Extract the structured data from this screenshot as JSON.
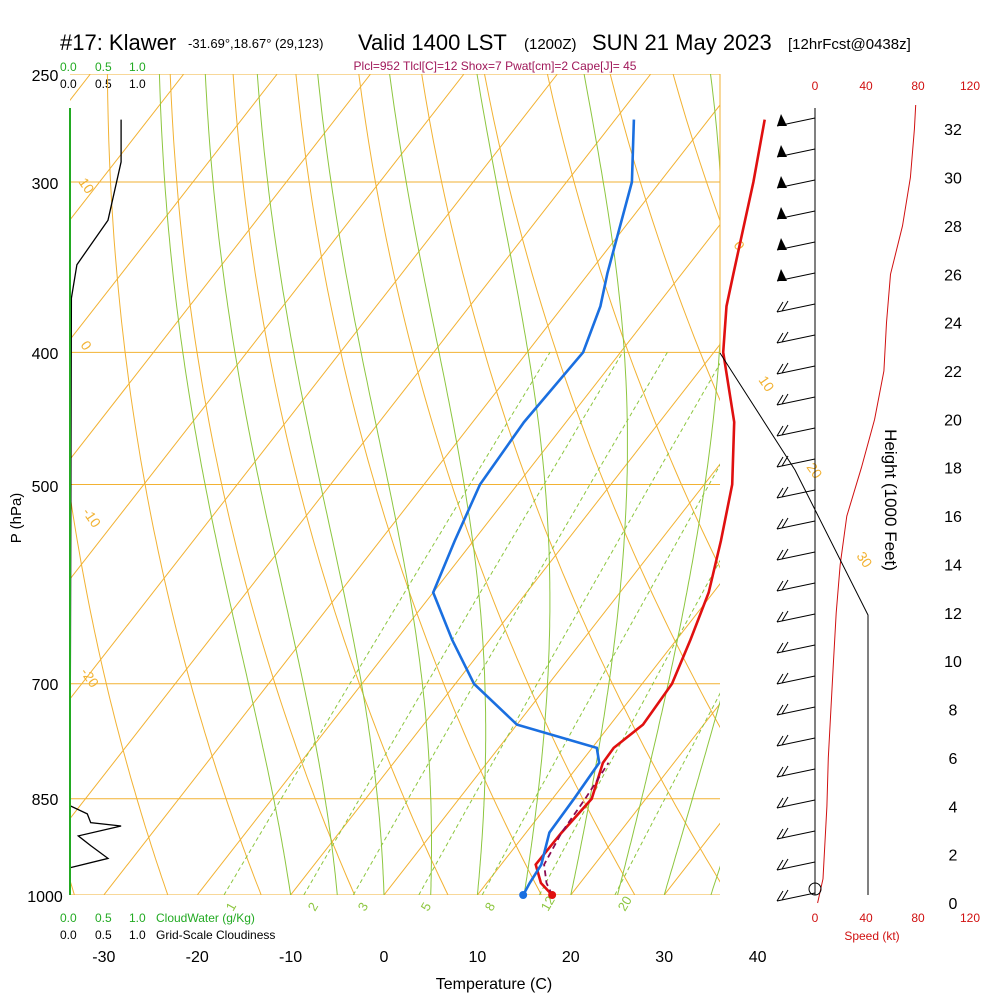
{
  "header": {
    "station": "#17: Klawer",
    "coords": "-31.69°,18.67° (29,123)",
    "valid": "Valid 1400 LST",
    "utc": "(1200Z)",
    "date": "SUN 21 May 2023",
    "fcst": "[12hrFcst@0438z]",
    "indices": "Plcl=952 Tlcl[C]=12 Shox=7 Pwat[cm]=2 Cape[J]= 45"
  },
  "axes": {
    "x_label": "Temperature (C)",
    "y_label": "P (hPa)",
    "height_label": "Height (1000 Feet)",
    "speed_label": "Speed (kt)",
    "x_ticks": [
      "-30",
      "-20",
      "-10",
      "0",
      "10",
      "20",
      "30",
      "40"
    ],
    "p_ticks": [
      "250",
      "300",
      "400",
      "500",
      "700",
      "850",
      "1000"
    ],
    "height_ticks": [
      "0",
      "2",
      "4",
      "6",
      "8",
      "10",
      "12",
      "14",
      "16",
      "18",
      "20",
      "22",
      "24",
      "26",
      "28",
      "30",
      "32"
    ],
    "speed_ticks": [
      "0",
      "40",
      "80",
      "120"
    ]
  },
  "cloud_scale": {
    "cloudwater_ticks": [
      "0.0",
      "0.5",
      "1.0"
    ],
    "cloudwater_label": "CloudWater (g/Kg)",
    "cloudiness_ticks": [
      "0.0",
      "0.5",
      "1.0"
    ],
    "cloudiness_label": "Grid-Scale Cloudiness"
  },
  "diagram_labels": {
    "theta": [
      "10",
      "0",
      "-10",
      "-20",
      "0",
      "10",
      "20",
      "30"
    ],
    "mixing": [
      "1",
      "2",
      "3",
      "5",
      "8",
      "12",
      "20"
    ]
  },
  "colors": {
    "temperature": "#e01010",
    "dewpoint": "#1a6fe0",
    "parcel": "#8b0a50",
    "isotherm": "#f2b233",
    "dry_adiabat": "#f2b233",
    "moist_adiabat": "#8dc63f",
    "mixing_ratio": "#8dc63f",
    "cloud_green": "#22aa22",
    "speed": "#d01010",
    "indices": "#a0185a",
    "sounding_black": "#000000"
  },
  "chart_data": {
    "type": "line",
    "title": "#17: Klawer Valid 1400 LST (1200Z) SUN 21 May 2023",
    "xlabel": "Temperature (C)",
    "ylabel": "P (hPa)",
    "pressure_levels": [
      1000,
      980,
      950,
      900,
      850,
      800,
      780,
      750,
      700,
      650,
      600,
      550,
      500,
      450,
      400,
      370,
      350,
      300,
      270
    ],
    "series": [
      {
        "values": [
          18.0,
          15.8,
          13.7,
          13.8,
          14.2,
          12.4,
          12.3,
          13.5,
          13.2,
          11.5,
          9.5,
          6.5,
          3.0,
          -2.0,
          -9.0,
          -12.5,
          -14.5,
          -20.0,
          -24.0
        ]
      },
      {
        "values": [
          14.9,
          14.6,
          14.3,
          12.5,
          12.3,
          12.0,
          10.5,
          0.0,
          -8.0,
          -14.0,
          -20.0,
          -22.0,
          -24.0,
          -24.5,
          -24.0,
          -26.0,
          -28.0,
          -33.0,
          -38.0
        ]
      },
      {
        "values": [
          18.0,
          16.4,
          14.6,
          13.8,
          13.5,
          13.0
        ]
      }
    ],
    "wind_speed_profile": [
      {
        "height_kft": 0,
        "speed_kt": 2
      },
      {
        "height_kft": 1,
        "speed_kt": 6
      },
      {
        "height_kft": 2,
        "speed_kt": 7
      },
      {
        "height_kft": 4,
        "speed_kt": 9
      },
      {
        "height_kft": 6,
        "speed_kt": 10
      },
      {
        "height_kft": 8,
        "speed_kt": 12
      },
      {
        "height_kft": 10,
        "speed_kt": 14
      },
      {
        "height_kft": 12,
        "speed_kt": 16
      },
      {
        "height_kft": 14,
        "speed_kt": 19
      },
      {
        "height_kft": 16,
        "speed_kt": 24
      },
      {
        "height_kft": 18,
        "speed_kt": 35
      },
      {
        "height_kft": 20,
        "speed_kt": 45
      },
      {
        "height_kft": 22,
        "speed_kt": 52
      },
      {
        "height_kft": 24,
        "speed_kt": 54
      },
      {
        "height_kft": 26,
        "speed_kt": 57
      },
      {
        "height_kft": 28,
        "speed_kt": 66
      },
      {
        "height_kft": 30,
        "speed_kt": 72
      },
      {
        "height_kft": 32,
        "speed_kt": 75
      },
      {
        "height_kft": 33,
        "speed_kt": 76
      }
    ],
    "grid_cloudiness_profile": [
      {
        "p": 270,
        "value": 0.74
      },
      {
        "p": 290,
        "value": 0.74
      },
      {
        "p": 320,
        "value": 0.55
      },
      {
        "p": 345,
        "value": 0.1
      },
      {
        "p": 365,
        "value": 0.02
      },
      {
        "p": 860,
        "value": 0.0
      },
      {
        "p": 872,
        "value": 0.25
      },
      {
        "p": 885,
        "value": 0.3
      },
      {
        "p": 890,
        "value": 0.74
      },
      {
        "p": 905,
        "value": 0.12
      },
      {
        "p": 920,
        "value": 0.3
      },
      {
        "p": 940,
        "value": 0.55
      },
      {
        "p": 955,
        "value": 0.0
      }
    ]
  }
}
